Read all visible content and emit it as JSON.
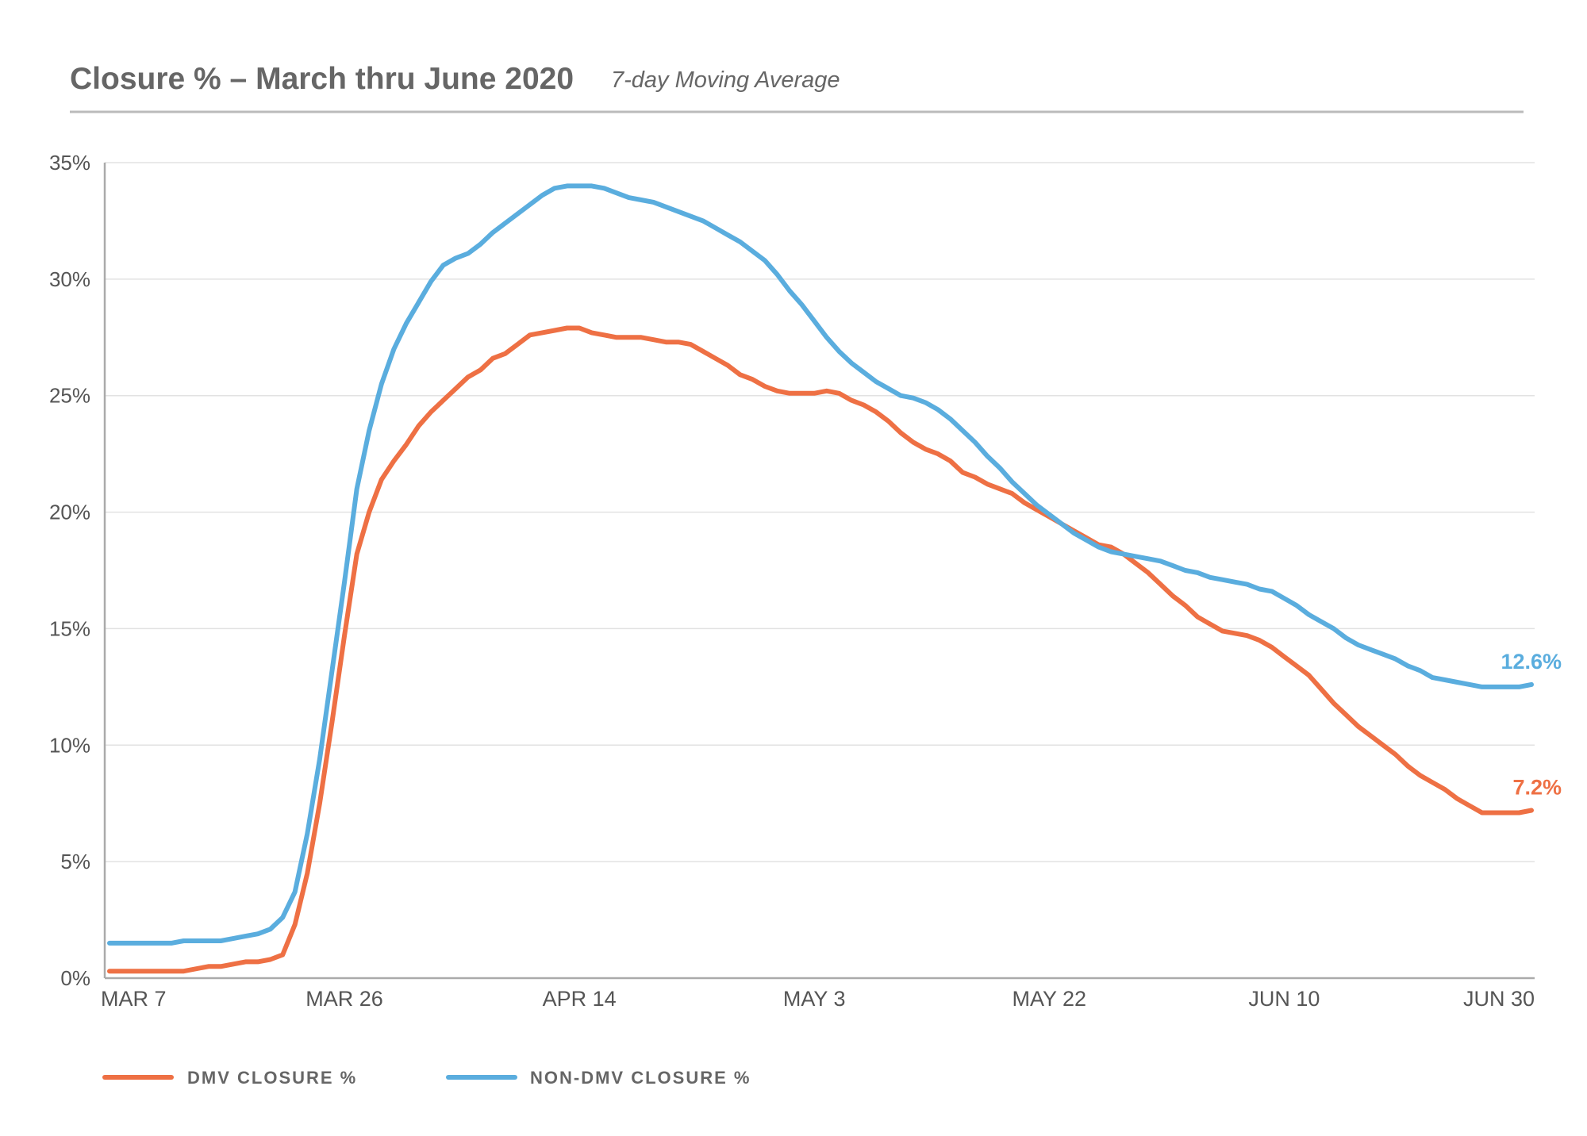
{
  "chart_data": {
    "type": "line",
    "title": "Closure % – March thru June 2020",
    "subtitle": "7-day Moving Average",
    "ylim": [
      0,
      35
    ],
    "y_ticks": [
      0,
      5,
      10,
      15,
      20,
      25,
      30,
      35
    ],
    "y_tick_labels": [
      "0%",
      "5%",
      "10%",
      "15%",
      "20%",
      "25%",
      "30%",
      "35%"
    ],
    "x_tick_labels": [
      "MAR 7",
      "MAR 26",
      "APR 14",
      "MAY 3",
      "MAY 22",
      "JUN 10",
      "JUN 30"
    ],
    "x_tick_days": [
      0,
      19,
      38,
      57,
      76,
      95,
      115
    ],
    "xlim": [
      0,
      115
    ],
    "grid": "horizontal",
    "legend_position": "bottom-left",
    "colors": {
      "dmv": "#EE7044",
      "nondmv": "#5AADDE",
      "axis": "#AAAAAA",
      "grid": "#E2E2E2",
      "title_rule": "#BBBBBB"
    },
    "series": [
      {
        "name": "DMV CLOSURE %",
        "key": "dmv",
        "end_label": "7.2%",
        "points": [
          [
            0,
            0.3
          ],
          [
            4,
            0.3
          ],
          [
            6,
            0.3
          ],
          [
            8,
            0.5
          ],
          [
            9,
            0.5
          ],
          [
            11,
            0.7
          ],
          [
            12,
            0.7
          ],
          [
            13,
            0.8
          ],
          [
            14,
            1.0
          ],
          [
            15,
            2.3
          ],
          [
            16,
            4.5
          ],
          [
            17,
            7.5
          ],
          [
            18,
            11.0
          ],
          [
            19,
            14.7
          ],
          [
            20,
            18.2
          ],
          [
            21,
            20.0
          ],
          [
            22,
            21.4
          ],
          [
            23,
            22.2
          ],
          [
            24,
            22.9
          ],
          [
            25,
            23.7
          ],
          [
            26,
            24.3
          ],
          [
            27,
            24.8
          ],
          [
            28,
            25.3
          ],
          [
            29,
            25.8
          ],
          [
            30,
            26.1
          ],
          [
            31,
            26.6
          ],
          [
            32,
            26.8
          ],
          [
            33,
            27.2
          ],
          [
            34,
            27.6
          ],
          [
            35,
            27.7
          ],
          [
            36,
            27.8
          ],
          [
            37,
            27.9
          ],
          [
            38,
            27.9
          ],
          [
            39,
            27.7
          ],
          [
            40,
            27.6
          ],
          [
            41,
            27.5
          ],
          [
            42,
            27.5
          ],
          [
            43,
            27.5
          ],
          [
            44,
            27.4
          ],
          [
            45,
            27.3
          ],
          [
            46,
            27.3
          ],
          [
            47,
            27.2
          ],
          [
            48,
            26.9
          ],
          [
            49,
            26.6
          ],
          [
            50,
            26.3
          ],
          [
            51,
            25.9
          ],
          [
            52,
            25.7
          ],
          [
            53,
            25.4
          ],
          [
            54,
            25.2
          ],
          [
            55,
            25.1
          ],
          [
            56,
            25.1
          ],
          [
            57,
            25.1
          ],
          [
            58,
            25.2
          ],
          [
            59,
            25.1
          ],
          [
            60,
            24.8
          ],
          [
            61,
            24.6
          ],
          [
            62,
            24.3
          ],
          [
            63,
            23.9
          ],
          [
            64,
            23.4
          ],
          [
            65,
            23.0
          ],
          [
            66,
            22.7
          ],
          [
            67,
            22.5
          ],
          [
            68,
            22.2
          ],
          [
            69,
            21.7
          ],
          [
            70,
            21.5
          ],
          [
            71,
            21.2
          ],
          [
            72,
            21.0
          ],
          [
            73,
            20.8
          ],
          [
            74,
            20.4
          ],
          [
            75,
            20.1
          ],
          [
            76,
            19.8
          ],
          [
            77,
            19.5
          ],
          [
            78,
            19.2
          ],
          [
            79,
            18.9
          ],
          [
            80,
            18.6
          ],
          [
            81,
            18.5
          ],
          [
            82,
            18.2
          ],
          [
            83,
            17.8
          ],
          [
            84,
            17.4
          ],
          [
            85,
            16.9
          ],
          [
            86,
            16.4
          ],
          [
            87,
            16.0
          ],
          [
            88,
            15.5
          ],
          [
            89,
            15.2
          ],
          [
            90,
            14.9
          ],
          [
            91,
            14.8
          ],
          [
            92,
            14.7
          ],
          [
            93,
            14.5
          ],
          [
            94,
            14.2
          ],
          [
            95,
            13.8
          ],
          [
            96,
            13.4
          ],
          [
            97,
            13.0
          ],
          [
            98,
            12.4
          ],
          [
            99,
            11.8
          ],
          [
            100,
            11.3
          ],
          [
            101,
            10.8
          ],
          [
            102,
            10.4
          ],
          [
            103,
            10.0
          ],
          [
            104,
            9.6
          ],
          [
            105,
            9.1
          ],
          [
            106,
            8.7
          ],
          [
            107,
            8.4
          ],
          [
            108,
            8.1
          ],
          [
            109,
            7.7
          ],
          [
            110,
            7.4
          ],
          [
            111,
            7.1
          ],
          [
            112,
            7.1
          ],
          [
            113,
            7.1
          ],
          [
            114,
            7.1
          ],
          [
            115,
            7.2
          ]
        ]
      },
      {
        "name": "NON-DMV CLOSURE %",
        "key": "nondmv",
        "end_label": "12.6%",
        "points": [
          [
            0,
            1.5
          ],
          [
            5,
            1.5
          ],
          [
            6,
            1.6
          ],
          [
            9,
            1.6
          ],
          [
            10,
            1.7
          ],
          [
            11,
            1.8
          ],
          [
            12,
            1.9
          ],
          [
            13,
            2.1
          ],
          [
            14,
            2.6
          ],
          [
            15,
            3.7
          ],
          [
            16,
            6.2
          ],
          [
            17,
            9.4
          ],
          [
            18,
            13.2
          ],
          [
            19,
            17.0
          ],
          [
            20,
            21.0
          ],
          [
            21,
            23.5
          ],
          [
            22,
            25.5
          ],
          [
            23,
            27.0
          ],
          [
            24,
            28.1
          ],
          [
            25,
            29.0
          ],
          [
            26,
            29.9
          ],
          [
            27,
            30.6
          ],
          [
            28,
            30.9
          ],
          [
            29,
            31.1
          ],
          [
            30,
            31.5
          ],
          [
            31,
            32.0
          ],
          [
            32,
            32.4
          ],
          [
            33,
            32.8
          ],
          [
            34,
            33.2
          ],
          [
            35,
            33.6
          ],
          [
            36,
            33.9
          ],
          [
            37,
            34.0
          ],
          [
            38,
            34.0
          ],
          [
            39,
            34.0
          ],
          [
            40,
            33.9
          ],
          [
            41,
            33.7
          ],
          [
            42,
            33.5
          ],
          [
            43,
            33.4
          ],
          [
            44,
            33.3
          ],
          [
            45,
            33.1
          ],
          [
            46,
            32.9
          ],
          [
            47,
            32.7
          ],
          [
            48,
            32.5
          ],
          [
            49,
            32.2
          ],
          [
            50,
            31.9
          ],
          [
            51,
            31.6
          ],
          [
            52,
            31.2
          ],
          [
            53,
            30.8
          ],
          [
            54,
            30.2
          ],
          [
            55,
            29.5
          ],
          [
            56,
            28.9
          ],
          [
            57,
            28.2
          ],
          [
            58,
            27.5
          ],
          [
            59,
            26.9
          ],
          [
            60,
            26.4
          ],
          [
            61,
            26.0
          ],
          [
            62,
            25.6
          ],
          [
            63,
            25.3
          ],
          [
            64,
            25.0
          ],
          [
            65,
            24.9
          ],
          [
            66,
            24.7
          ],
          [
            67,
            24.4
          ],
          [
            68,
            24.0
          ],
          [
            69,
            23.5
          ],
          [
            70,
            23.0
          ],
          [
            71,
            22.4
          ],
          [
            72,
            21.9
          ],
          [
            73,
            21.3
          ],
          [
            74,
            20.8
          ],
          [
            75,
            20.3
          ],
          [
            76,
            19.9
          ],
          [
            77,
            19.5
          ],
          [
            78,
            19.1
          ],
          [
            79,
            18.8
          ],
          [
            80,
            18.5
          ],
          [
            81,
            18.3
          ],
          [
            82,
            18.2
          ],
          [
            83,
            18.1
          ],
          [
            84,
            18.0
          ],
          [
            85,
            17.9
          ],
          [
            86,
            17.7
          ],
          [
            87,
            17.5
          ],
          [
            88,
            17.4
          ],
          [
            89,
            17.2
          ],
          [
            90,
            17.1
          ],
          [
            91,
            17.0
          ],
          [
            92,
            16.9
          ],
          [
            93,
            16.7
          ],
          [
            94,
            16.6
          ],
          [
            95,
            16.3
          ],
          [
            96,
            16.0
          ],
          [
            97,
            15.6
          ],
          [
            98,
            15.3
          ],
          [
            99,
            15.0
          ],
          [
            100,
            14.6
          ],
          [
            101,
            14.3
          ],
          [
            102,
            14.1
          ],
          [
            103,
            13.9
          ],
          [
            104,
            13.7
          ],
          [
            105,
            13.4
          ],
          [
            106,
            13.2
          ],
          [
            107,
            12.9
          ],
          [
            108,
            12.8
          ],
          [
            109,
            12.7
          ],
          [
            110,
            12.6
          ],
          [
            111,
            12.5
          ],
          [
            112,
            12.5
          ],
          [
            113,
            12.5
          ],
          [
            114,
            12.5
          ],
          [
            115,
            12.6
          ]
        ]
      }
    ]
  }
}
